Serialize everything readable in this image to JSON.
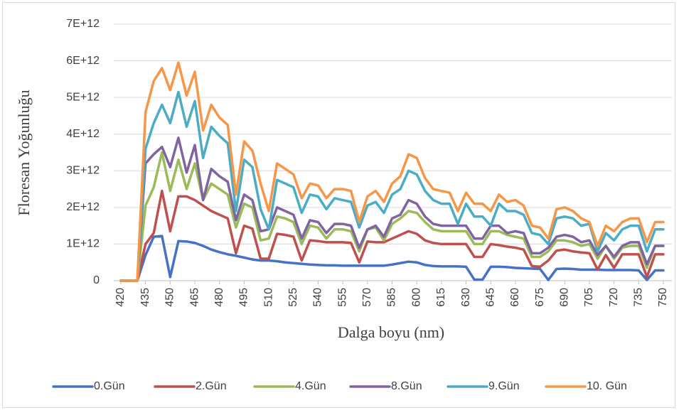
{
  "chart_data": {
    "type": "line",
    "y_label": "Floresan Yoğunluğu",
    "x_label": "Dalga boyu (nm)",
    "x": [
      420,
      425,
      430,
      435,
      440,
      445,
      450,
      455,
      460,
      465,
      470,
      475,
      480,
      485,
      490,
      495,
      500,
      505,
      510,
      515,
      520,
      525,
      530,
      535,
      540,
      545,
      550,
      555,
      560,
      565,
      570,
      575,
      580,
      585,
      590,
      595,
      600,
      605,
      610,
      615,
      620,
      625,
      630,
      635,
      640,
      645,
      650,
      655,
      660,
      665,
      670,
      675,
      680,
      685,
      690,
      695,
      700,
      705,
      710,
      715,
      720,
      725,
      730,
      735,
      740,
      745,
      750
    ],
    "xlim": [
      420,
      750
    ],
    "xticks": [
      420,
      435,
      450,
      465,
      480,
      495,
      510,
      525,
      540,
      555,
      570,
      585,
      600,
      615,
      630,
      645,
      660,
      675,
      690,
      705,
      720,
      735,
      750
    ],
    "ylim": [
      0,
      7000000000000.0
    ],
    "yticks": [
      0,
      {
        "value": 1000000000000.0,
        "label": "1E+12"
      },
      {
        "value": 2000000000000.0,
        "label": "2E+12"
      },
      {
        "value": 3000000000000.0,
        "label": "3E+12"
      },
      {
        "value": 4000000000000.0,
        "label": "4E+12"
      },
      {
        "value": 5000000000000.0,
        "label": "5E+12"
      },
      {
        "value": 6000000000000.0,
        "label": "6E+12"
      },
      {
        "value": 7000000000000.0,
        "label": "7E+12"
      }
    ],
    "grid": true,
    "legend": "bottom",
    "series": [
      {
        "name": "0.Gün",
        "color": "#4472c4",
        "values": [
          0,
          0,
          0,
          700000000000.0,
          1200000000000.0,
          1220000000000.0,
          100000000000.0,
          1080000000000.0,
          1070000000000.0,
          1030000000000.0,
          950000000000.0,
          850000000000.0,
          780000000000.0,
          720000000000.0,
          680000000000.0,
          630000000000.0,
          580000000000.0,
          550000000000.0,
          550000000000.0,
          530000000000.0,
          500000000000.0,
          480000000000.0,
          460000000000.0,
          440000000000.0,
          430000000000.0,
          420000000000.0,
          420000000000.0,
          410000000000.0,
          410000000000.0,
          410000000000.0,
          410000000000.0,
          410000000000.0,
          410000000000.0,
          440000000000.0,
          480000000000.0,
          520000000000.0,
          500000000000.0,
          430000000000.0,
          400000000000.0,
          390000000000.0,
          390000000000.0,
          390000000000.0,
          380000000000.0,
          30000000000.0,
          30000000000.0,
          380000000000.0,
          380000000000.0,
          370000000000.0,
          350000000000.0,
          340000000000.0,
          330000000000.0,
          320000000000.0,
          20000000000.0,
          320000000000.0,
          330000000000.0,
          320000000000.0,
          300000000000.0,
          300000000000.0,
          300000000000.0,
          290000000000.0,
          290000000000.0,
          290000000000.0,
          290000000000.0,
          280000000000.0,
          20000000000.0,
          280000000000.0,
          280000000000.0
        ]
      },
      {
        "name": "2.Gün",
        "color": "#c0504d",
        "values": [
          0,
          0,
          0,
          1000000000000.0,
          1300000000000.0,
          2450000000000.0,
          1350000000000.0,
          2300000000000.0,
          2300000000000.0,
          2200000000000.0,
          2050000000000.0,
          1900000000000.0,
          1800000000000.0,
          1700000000000.0,
          750000000000.0,
          1500000000000.0,
          1420000000000.0,
          600000000000.0,
          600000000000.0,
          1280000000000.0,
          1250000000000.0,
          1200000000000.0,
          550000000000.0,
          1100000000000.0,
          1080000000000.0,
          1050000000000.0,
          1050000000000.0,
          1050000000000.0,
          1030000000000.0,
          500000000000.0,
          1070000000000.0,
          1050000000000.0,
          1050000000000.0,
          1150000000000.0,
          1250000000000.0,
          1350000000000.0,
          1280000000000.0,
          1100000000000.0,
          1030000000000.0,
          1000000000000.0,
          1000000000000.0,
          1000000000000.0,
          1000000000000.0,
          650000000000.0,
          650000000000.0,
          1000000000000.0,
          970000000000.0,
          930000000000.0,
          900000000000.0,
          850000000000.0,
          400000000000.0,
          380000000000.0,
          550000000000.0,
          820000000000.0,
          850000000000.0,
          800000000000.0,
          770000000000.0,
          750000000000.0,
          300000000000.0,
          700000000000.0,
          350000000000.0,
          720000000000.0,
          720000000000.0,
          720000000000.0,
          100000000000.0,
          720000000000.0,
          720000000000.0
        ]
      },
      {
        "name": "4.Gün",
        "color": "#9bbb59",
        "values": [
          0,
          0,
          0,
          2050000000000.0,
          2550000000000.0,
          3500000000000.0,
          2450000000000.0,
          3300000000000.0,
          2500000000000.0,
          3200000000000.0,
          2200000000000.0,
          2650000000000.0,
          2500000000000.0,
          2350000000000.0,
          1450000000000.0,
          2100000000000.0,
          2000000000000.0,
          1100000000000.0,
          1150000000000.0,
          1750000000000.0,
          1700000000000.0,
          1600000000000.0,
          1000000000000.0,
          1500000000000.0,
          1450000000000.0,
          1150000000000.0,
          1400000000000.0,
          1400000000000.0,
          1350000000000.0,
          800000000000.0,
          1400000000000.0,
          1450000000000.0,
          1100000000000.0,
          1550000000000.0,
          1700000000000.0,
          1900000000000.0,
          1850000000000.0,
          1600000000000.0,
          1400000000000.0,
          1350000000000.0,
          1350000000000.0,
          1350000000000.0,
          1350000000000.0,
          1000000000000.0,
          1000000000000.0,
          1350000000000.0,
          1350000000000.0,
          1250000000000.0,
          1200000000000.0,
          1150000000000.0,
          650000000000.0,
          650000000000.0,
          800000000000.0,
          1100000000000.0,
          1100000000000.0,
          1050000000000.0,
          950000000000.0,
          1000000000000.0,
          600000000000.0,
          950000000000.0,
          600000000000.0,
          900000000000.0,
          950000000000.0,
          950000000000.0,
          350000000000.0,
          950000000000.0,
          950000000000.0
        ]
      },
      {
        "name": "8.Gün",
        "color": "#8064a2",
        "values": [
          0,
          0,
          0,
          3200000000000.0,
          3450000000000.0,
          3650000000000.0,
          3100000000000.0,
          3900000000000.0,
          2950000000000.0,
          3700000000000.0,
          2200000000000.0,
          3050000000000.0,
          2850000000000.0,
          2700000000000.0,
          1650000000000.0,
          2350000000000.0,
          2200000000000.0,
          1350000000000.0,
          1400000000000.0,
          2000000000000.0,
          1900000000000.0,
          1800000000000.0,
          1150000000000.0,
          1650000000000.0,
          1600000000000.0,
          1300000000000.0,
          1550000000000.0,
          1550000000000.0,
          1500000000000.0,
          900000000000.0,
          1400000000000.0,
          1500000000000.0,
          1200000000000.0,
          1700000000000.0,
          1800000000000.0,
          2200000000000.0,
          2100000000000.0,
          1750000000000.0,
          1550000000000.0,
          1500000000000.0,
          1500000000000.0,
          1500000000000.0,
          1500000000000.0,
          1150000000000.0,
          1150000000000.0,
          1500000000000.0,
          1500000000000.0,
          1300000000000.0,
          1350000000000.0,
          1300000000000.0,
          750000000000.0,
          750000000000.0,
          900000000000.0,
          1200000000000.0,
          1250000000000.0,
          1200000000000.0,
          1050000000000.0,
          1100000000000.0,
          700000000000.0,
          950000000000.0,
          650000000000.0,
          950000000000.0,
          1050000000000.0,
          1050000000000.0,
          450000000000.0,
          950000000000.0,
          950000000000.0
        ]
      },
      {
        "name": "9.Gün",
        "color": "#4bacc6",
        "values": [
          0,
          0,
          0,
          3600000000000.0,
          4300000000000.0,
          4800000000000.0,
          4300000000000.0,
          5150000000000.0,
          4200000000000.0,
          4900000000000.0,
          3350000000000.0,
          4200000000000.0,
          3950000000000.0,
          3750000000000.0,
          1900000000000.0,
          3300000000000.0,
          3100000000000.0,
          1950000000000.0,
          1400000000000.0,
          2750000000000.0,
          2650000000000.0,
          2550000000000.0,
          1850000000000.0,
          2350000000000.0,
          2300000000000.0,
          1950000000000.0,
          2250000000000.0,
          2200000000000.0,
          2150000000000.0,
          1450000000000.0,
          2050000000000.0,
          2150000000000.0,
          1850000000000.0,
          2350000000000.0,
          2500000000000.0,
          3000000000000.0,
          2900000000000.0,
          2450000000000.0,
          2200000000000.0,
          2100000000000.0,
          2100000000000.0,
          1550000000000.0,
          2100000000000.0,
          1750000000000.0,
          1750000000000.0,
          1500000000000.0,
          2100000000000.0,
          1900000000000.0,
          1900000000000.0,
          1800000000000.0,
          1300000000000.0,
          1250000000000.0,
          1000000000000.0,
          1700000000000.0,
          1750000000000.0,
          1700000000000.0,
          1500000000000.0,
          1550000000000.0,
          800000000000.0,
          1300000000000.0,
          1100000000000.0,
          1400000000000.0,
          1500000000000.0,
          1500000000000.0,
          800000000000.0,
          1400000000000.0,
          1400000000000.0
        ]
      },
      {
        "name": "10. Gün",
        "color": "#f79646",
        "values": [
          0,
          0,
          0,
          4600000000000.0,
          5450000000000.0,
          5800000000000.0,
          5200000000000.0,
          5950000000000.0,
          5050000000000.0,
          5700000000000.0,
          4100000000000.0,
          4800000000000.0,
          4450000000000.0,
          4250000000000.0,
          2350000000000.0,
          3800000000000.0,
          3550000000000.0,
          2650000000000.0,
          1900000000000.0,
          3200000000000.0,
          3050000000000.0,
          2900000000000.0,
          2250000000000.0,
          2650000000000.0,
          2600000000000.0,
          2250000000000.0,
          2500000000000.0,
          2500000000000.0,
          2450000000000.0,
          1600000000000.0,
          2300000000000.0,
          2450000000000.0,
          2150000000000.0,
          2650000000000.0,
          2850000000000.0,
          3450000000000.0,
          3350000000000.0,
          2800000000000.0,
          2500000000000.0,
          2450000000000.0,
          2400000000000.0,
          1900000000000.0,
          2400000000000.0,
          2100000000000.0,
          2100000000000.0,
          1900000000000.0,
          2350000000000.0,
          2150000000000.0,
          2200000000000.0,
          2050000000000.0,
          1500000000000.0,
          1450000000000.0,
          1150000000000.0,
          1950000000000.0,
          2000000000000.0,
          1900000000000.0,
          1700000000000.0,
          1600000000000.0,
          950000000000.0,
          1500000000000.0,
          1350000000000.0,
          1600000000000.0,
          1700000000000.0,
          1700000000000.0,
          1050000000000.0,
          1600000000000.0,
          1600000000000.0
        ]
      }
    ]
  }
}
